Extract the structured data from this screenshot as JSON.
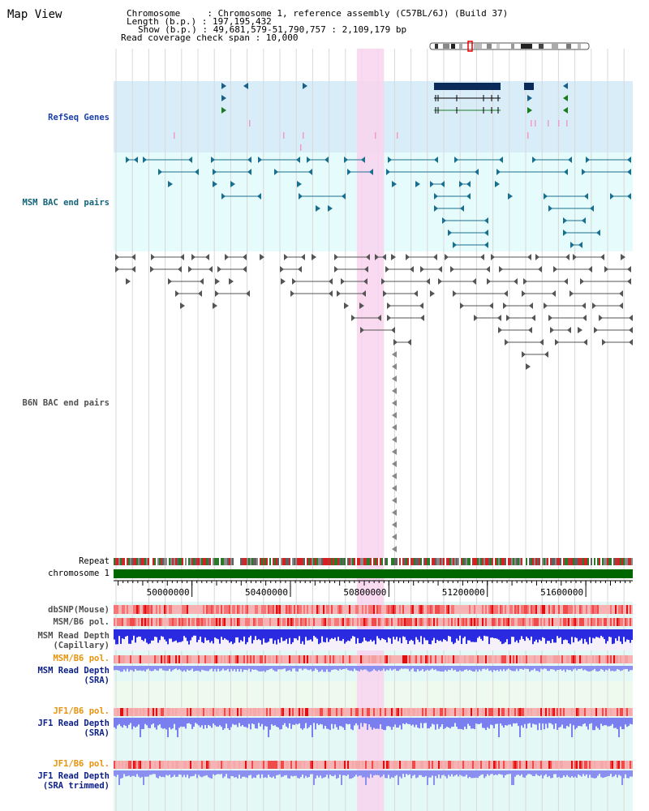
{
  "page": {
    "title": "Map View"
  },
  "header": {
    "chromosome_line": "Chromosome     : Chromosome 1, reference assembly (C57BL/6J) (Build 37)",
    "length_line": "Length (b.p.) : 197,195,432",
    "show_line": "Show (b.p.) : 49,681,579-51,790,757 : 2,109,179 bp",
    "coverage_line": "Read coverage check span : 10,000"
  },
  "tracks": {
    "refseq": "RefSeq Genes",
    "msm_bac": "MSM BAC end pairs",
    "b6n_bac": "B6N BAC end pairs",
    "repeat": "Repeat",
    "chromosome": "chromosome 1",
    "dbsnp": "dbSNP(Mouse)",
    "msm_b6_pol_1": "MSM/B6 pol.",
    "msm_depth_cap_1": "MSM Read Depth",
    "msm_depth_cap_2": "(Capillary)",
    "msm_b6_pol_2": "MSM/B6 pol.",
    "msm_depth_sra_1": "MSM Read Depth",
    "msm_depth_sra_2": "(SRA)",
    "jf1_b6_pol_1": "JF1/B6 pol.",
    "jf1_depth_sra_1": "JF1 Read Depth",
    "jf1_depth_sra_2": "(SRA)",
    "jf1_b6_pol_2": "JF1/B6 pol.",
    "jf1_depth_trim_1": "JF1 Read Depth",
    "jf1_depth_trim_2": "(SRA trimmed)"
  },
  "axis": {
    "ticks": [
      "50000000",
      "50400000",
      "50800000",
      "51200000",
      "51600000"
    ],
    "tick_values": [
      50000000,
      50400000,
      50800000,
      51200000,
      51600000
    ],
    "range": [
      49681579,
      51790757
    ]
  },
  "highlight": {
    "start": 50670000,
    "end": 50780000
  },
  "colors": {
    "label_blue": "#1a3fa8",
    "label_teal": "#13637a",
    "label_gray": "#505050",
    "label_orange": "#e8930e",
    "label_navy": "#0b1f86",
    "refseq_bg": "#d9edf8",
    "msm_bg": "#e6fbfb",
    "highlight": "#f8d4ef",
    "chromosome_bar": "#006600"
  }
}
